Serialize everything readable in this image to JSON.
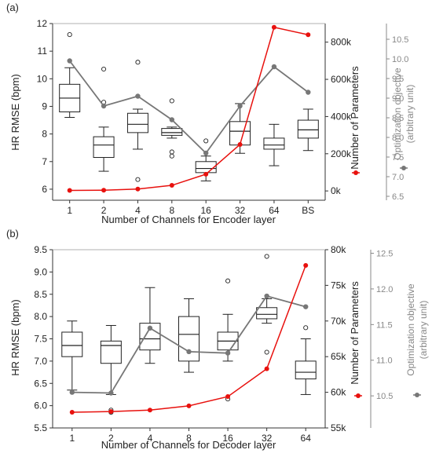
{
  "chart_data": [
    {
      "panel_label": "(a)",
      "type": "box+line",
      "xlabel": "Number of Channels for Encoder layer",
      "categories": [
        "1",
        "2",
        "4",
        "8",
        "16",
        "32",
        "64",
        "BS"
      ],
      "ylabel_left": "HR RMSE (bpm)",
      "ylim_left": [
        5.6,
        12
      ],
      "yticks_left": [
        "6",
        "7",
        "8",
        "9",
        "10",
        "11",
        "12"
      ],
      "ylabel_params": "Number of Parameters",
      "ylim_params": [
        -50000,
        900000
      ],
      "yticks_params": [
        "0k",
        "200k",
        "400k",
        "600k",
        "800k"
      ],
      "ylabel_opt_line1": "Optimization objective",
      "ylabel_opt_line2": "(arbitrary unit)",
      "ylim_opt": [
        6.4,
        10.9
      ],
      "yticks_opt": [
        "6.5",
        "7.0",
        "7.5",
        "8.0",
        "8.5",
        "9.0",
        "9.5",
        "10.0",
        "10.5"
      ],
      "boxes": [
        {
          "whislo": 8.6,
          "q1": 8.8,
          "med": 9.3,
          "q3": 9.8,
          "whishi": 10.4,
          "fliers": [
            11.6
          ]
        },
        {
          "whislo": 6.65,
          "q1": 7.15,
          "med": 7.6,
          "q3": 7.9,
          "whishi": 8.25,
          "fliers": [
            9.15,
            10.35
          ]
        },
        {
          "whislo": 7.45,
          "q1": 8.05,
          "med": 8.35,
          "q3": 8.75,
          "whishi": 8.9,
          "fliers": [
            6.35,
            10.6
          ]
        },
        {
          "whislo": 7.85,
          "q1": 7.95,
          "med": 8.05,
          "q3": 8.2,
          "whishi": 8.25,
          "fliers": [
            7.2,
            7.35,
            9.2
          ]
        },
        {
          "whislo": 6.3,
          "q1": 6.6,
          "med": 6.75,
          "q3": 7.0,
          "whishi": 7.2,
          "fliers": [
            7.75
          ]
        },
        {
          "whislo": 7.3,
          "q1": 7.6,
          "med": 8.1,
          "q3": 8.45,
          "whishi": 9.1,
          "fliers": []
        },
        {
          "whislo": 6.85,
          "q1": 7.45,
          "med": 7.6,
          "q3": 7.85,
          "whishi": 8.35,
          "fliers": []
        },
        {
          "whislo": 7.4,
          "q1": 7.85,
          "med": 8.15,
          "q3": 8.5,
          "whishi": 8.9,
          "fliers": []
        }
      ],
      "series_params": [
        3000,
        4000,
        10000,
        30000,
        90000,
        250000,
        880000,
        840000
      ],
      "series_opt": [
        9.95,
        8.8,
        9.05,
        8.45,
        7.6,
        8.8,
        9.8,
        9.15
      ],
      "color_params": "#e8110e",
      "color_opt": "#777777"
    },
    {
      "panel_label": "(b)",
      "type": "box+line",
      "xlabel": "Number of Channels for Decoder layer",
      "categories": [
        "1",
        "2",
        "4",
        "8",
        "16",
        "32",
        "64"
      ],
      "ylabel_left": "HR RMSE (bpm)",
      "ylim_left": [
        5.5,
        9.5
      ],
      "yticks_left": [
        "5.5",
        "6.0",
        "6.5",
        "7.0",
        "7.5",
        "8.0",
        "8.5",
        "9.0",
        "9.5"
      ],
      "ylabel_params": "Number of Parameters",
      "ylim_params": [
        55000,
        80000
      ],
      "yticks_params": [
        "55k",
        "60k",
        "65k",
        "70k",
        "75k",
        "80k"
      ],
      "ylabel_opt_line1": "Optimization objective",
      "ylabel_opt_line2": "(arbitrary unit)",
      "ylim_opt": [
        10.05,
        12.55
      ],
      "yticks_opt": [
        "10.5",
        "11.0",
        "11.5",
        "12.0",
        "12.5"
      ],
      "boxes": [
        {
          "whislo": 6.35,
          "q1": 7.1,
          "med": 7.35,
          "q3": 7.65,
          "whishi": 7.9,
          "fliers": []
        },
        {
          "whislo": 6.25,
          "q1": 6.95,
          "med": 7.35,
          "q3": 7.45,
          "whishi": 7.8,
          "fliers": [
            5.85,
            5.9
          ]
        },
        {
          "whislo": 6.95,
          "q1": 7.25,
          "med": 7.5,
          "q3": 7.85,
          "whishi": 8.65,
          "fliers": []
        },
        {
          "whislo": 6.75,
          "q1": 7.0,
          "med": 7.6,
          "q3": 8.0,
          "whishi": 8.4,
          "fliers": []
        },
        {
          "whislo": 7.0,
          "q1": 7.25,
          "med": 7.45,
          "q3": 7.65,
          "whishi": 8.05,
          "fliers": [
            6.15,
            8.8
          ]
        },
        {
          "whislo": 7.85,
          "q1": 7.95,
          "med": 8.05,
          "q3": 8.2,
          "whishi": 8.4,
          "fliers": [
            7.2,
            9.35
          ]
        },
        {
          "whislo": 6.25,
          "q1": 6.6,
          "med": 6.75,
          "q3": 7.0,
          "whishi": 7.5,
          "fliers": [
            7.75
          ]
        }
      ],
      "series_params": [
        57200,
        57300,
        57500,
        58100,
        59400,
        63300,
        77800
      ],
      "series_opt": [
        10.55,
        10.54,
        11.45,
        11.12,
        11.1,
        11.9,
        11.75
      ],
      "color_params": "#e8110e",
      "color_opt": "#777777"
    }
  ]
}
